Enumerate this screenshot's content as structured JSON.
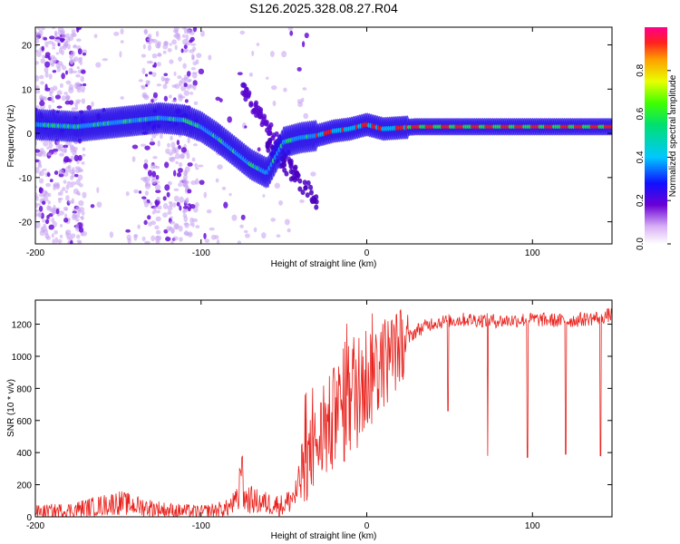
{
  "chart_data": [
    {
      "type": "heatmap",
      "title": "S126.2025.328.08.27.R04",
      "xlabel": "Height of straight line (km)",
      "ylabel": "Frequency (Hz)",
      "xlim": [
        -200,
        148
      ],
      "ylim": [
        -25,
        24
      ],
      "xticks": [
        -200,
        -100,
        0,
        100
      ],
      "yticks": [
        -20,
        -10,
        0,
        10,
        20
      ],
      "colorbar": {
        "label": "Normalized spectral amplitude",
        "range": [
          0,
          1
        ],
        "ticks": [
          0.0,
          0.2,
          0.4,
          0.6,
          0.8
        ]
      },
      "ridge": [
        {
          "x": -200,
          "y": 2
        },
        {
          "x": -175,
          "y": 1.5
        },
        {
          "x": -150,
          "y": 2.5
        },
        {
          "x": -125,
          "y": 3.5
        },
        {
          "x": -110,
          "y": 3
        },
        {
          "x": -100,
          "y": 1.5
        },
        {
          "x": -90,
          "y": -1
        },
        {
          "x": -80,
          "y": -4
        },
        {
          "x": -70,
          "y": -7
        },
        {
          "x": -60,
          "y": -9
        },
        {
          "x": -50,
          "y": -2
        },
        {
          "x": -40,
          "y": -1
        },
        {
          "x": -30,
          "y": -0.5
        },
        {
          "x": -20,
          "y": 0.5
        },
        {
          "x": -10,
          "y": 1
        },
        {
          "x": 0,
          "y": 2
        },
        {
          "x": 10,
          "y": 1
        },
        {
          "x": 30,
          "y": 1.5
        },
        {
          "x": 60,
          "y": 1.5
        },
        {
          "x": 100,
          "y": 1.5
        },
        {
          "x": 148,
          "y": 1.5
        }
      ]
    },
    {
      "type": "line",
      "xlabel": "Height of straight line (km)",
      "ylabel": "SNR (10 * v/v)",
      "xlim": [
        -200,
        148
      ],
      "ylim": [
        0,
        1350
      ],
      "xticks": [
        -200,
        -100,
        0,
        100
      ],
      "yticks": [
        0,
        200,
        400,
        600,
        800,
        1000,
        1200
      ],
      "series": [
        {
          "name": "SNR",
          "color": "#e8231e",
          "points": [
            {
              "x": -200,
              "y": 30
            },
            {
              "x": -180,
              "y": 40
            },
            {
              "x": -160,
              "y": 70
            },
            {
              "x": -150,
              "y": 90
            },
            {
              "x": -140,
              "y": 70
            },
            {
              "x": -120,
              "y": 40
            },
            {
              "x": -100,
              "y": 30
            },
            {
              "x": -85,
              "y": 50
            },
            {
              "x": -75,
              "y": 120
            },
            {
              "x": -65,
              "y": 90
            },
            {
              "x": -50,
              "y": 70
            },
            {
              "x": -42,
              "y": 150
            },
            {
              "x": -38,
              "y": 300
            },
            {
              "x": -30,
              "y": 450
            },
            {
              "x": -20,
              "y": 600
            },
            {
              "x": -10,
              "y": 750
            },
            {
              "x": 0,
              "y": 870
            },
            {
              "x": 10,
              "y": 960
            },
            {
              "x": 20,
              "y": 1060
            },
            {
              "x": 30,
              "y": 1160
            },
            {
              "x": 40,
              "y": 1210
            },
            {
              "x": 60,
              "y": 1230
            },
            {
              "x": 80,
              "y": 1220
            },
            {
              "x": 100,
              "y": 1230
            },
            {
              "x": 120,
              "y": 1220
            },
            {
              "x": 140,
              "y": 1240
            },
            {
              "x": 148,
              "y": 1260
            }
          ],
          "dips": [
            {
              "x": 49,
              "y": 660
            },
            {
              "x": 73,
              "y": 380
            },
            {
              "x": 97,
              "y": 370
            },
            {
              "x": 120,
              "y": 390
            },
            {
              "x": 141,
              "y": 380
            }
          ]
        }
      ]
    }
  ]
}
